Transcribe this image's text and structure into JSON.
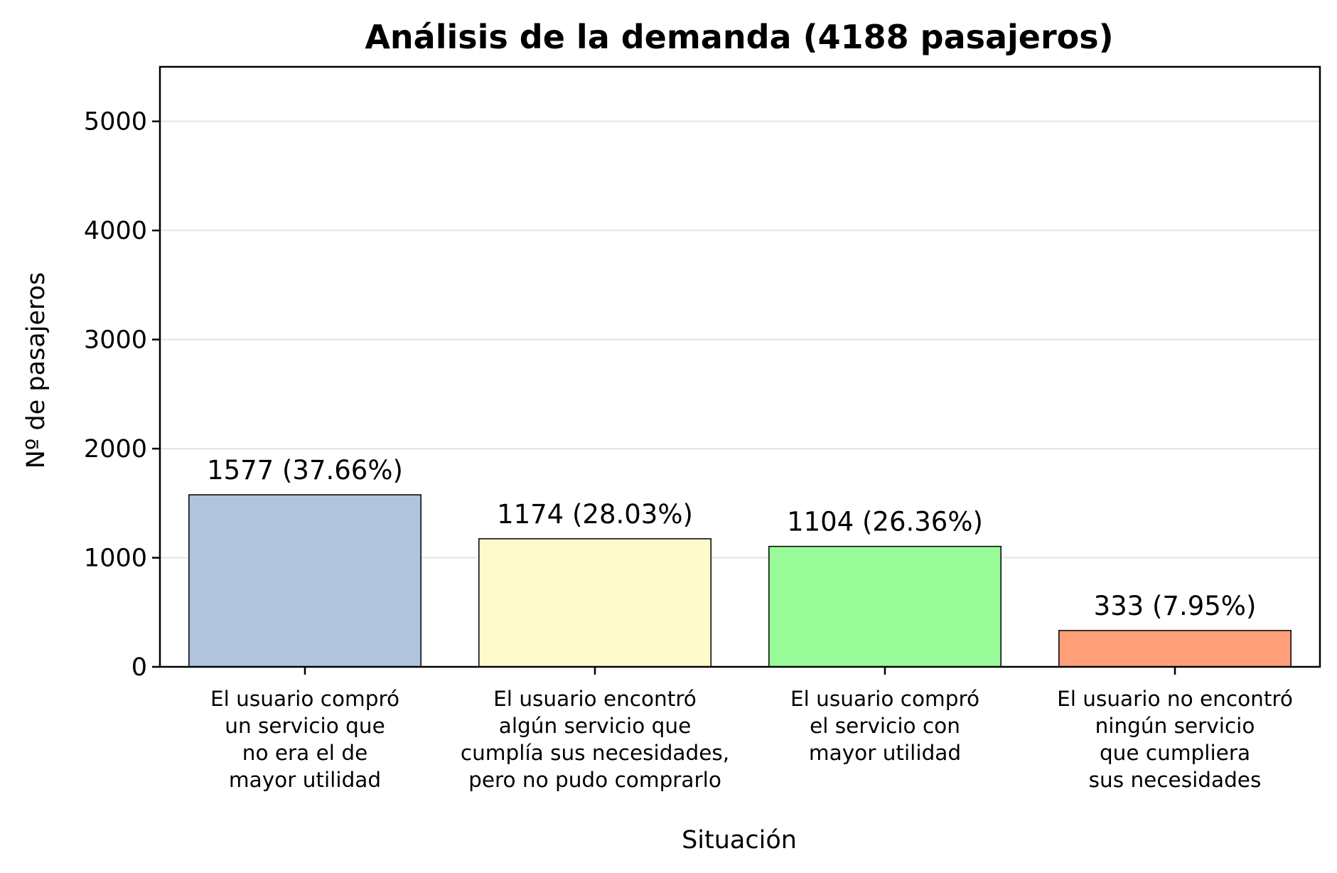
{
  "chart_data": {
    "type": "bar",
    "title": "Análisis de la demanda (4188 pasajeros)",
    "xlabel": "Situación",
    "ylabel": "Nº de pasajeros",
    "ylim": [
      0,
      5500
    ],
    "yticks": [
      "0",
      "1000",
      "2000",
      "3000",
      "4000",
      "5000"
    ],
    "grid": "horizontal",
    "categories": [
      [
        "El usuario compró",
        "un servicio que",
        "no era el de",
        "mayor utilidad"
      ],
      [
        "El usuario encontró",
        "algún servicio que",
        "cumplía sus necesidades,",
        "pero no pudo comprarlo"
      ],
      [
        "El usuario compró",
        "el servicio con",
        "mayor utilidad"
      ],
      [
        "El usuario no encontró",
        "ningún servicio",
        "que cumpliera",
        "sus necesidades"
      ]
    ],
    "values": [
      1577,
      1174,
      1104,
      333
    ],
    "data_labels": [
      "1577 (37.66%)",
      "1174 (28.03%)",
      "1104 (26.36%)",
      "333 (7.95%)"
    ],
    "colors": [
      "#b0c4de",
      "#fffacd",
      "#98fb98",
      "#ffa07a"
    ]
  }
}
